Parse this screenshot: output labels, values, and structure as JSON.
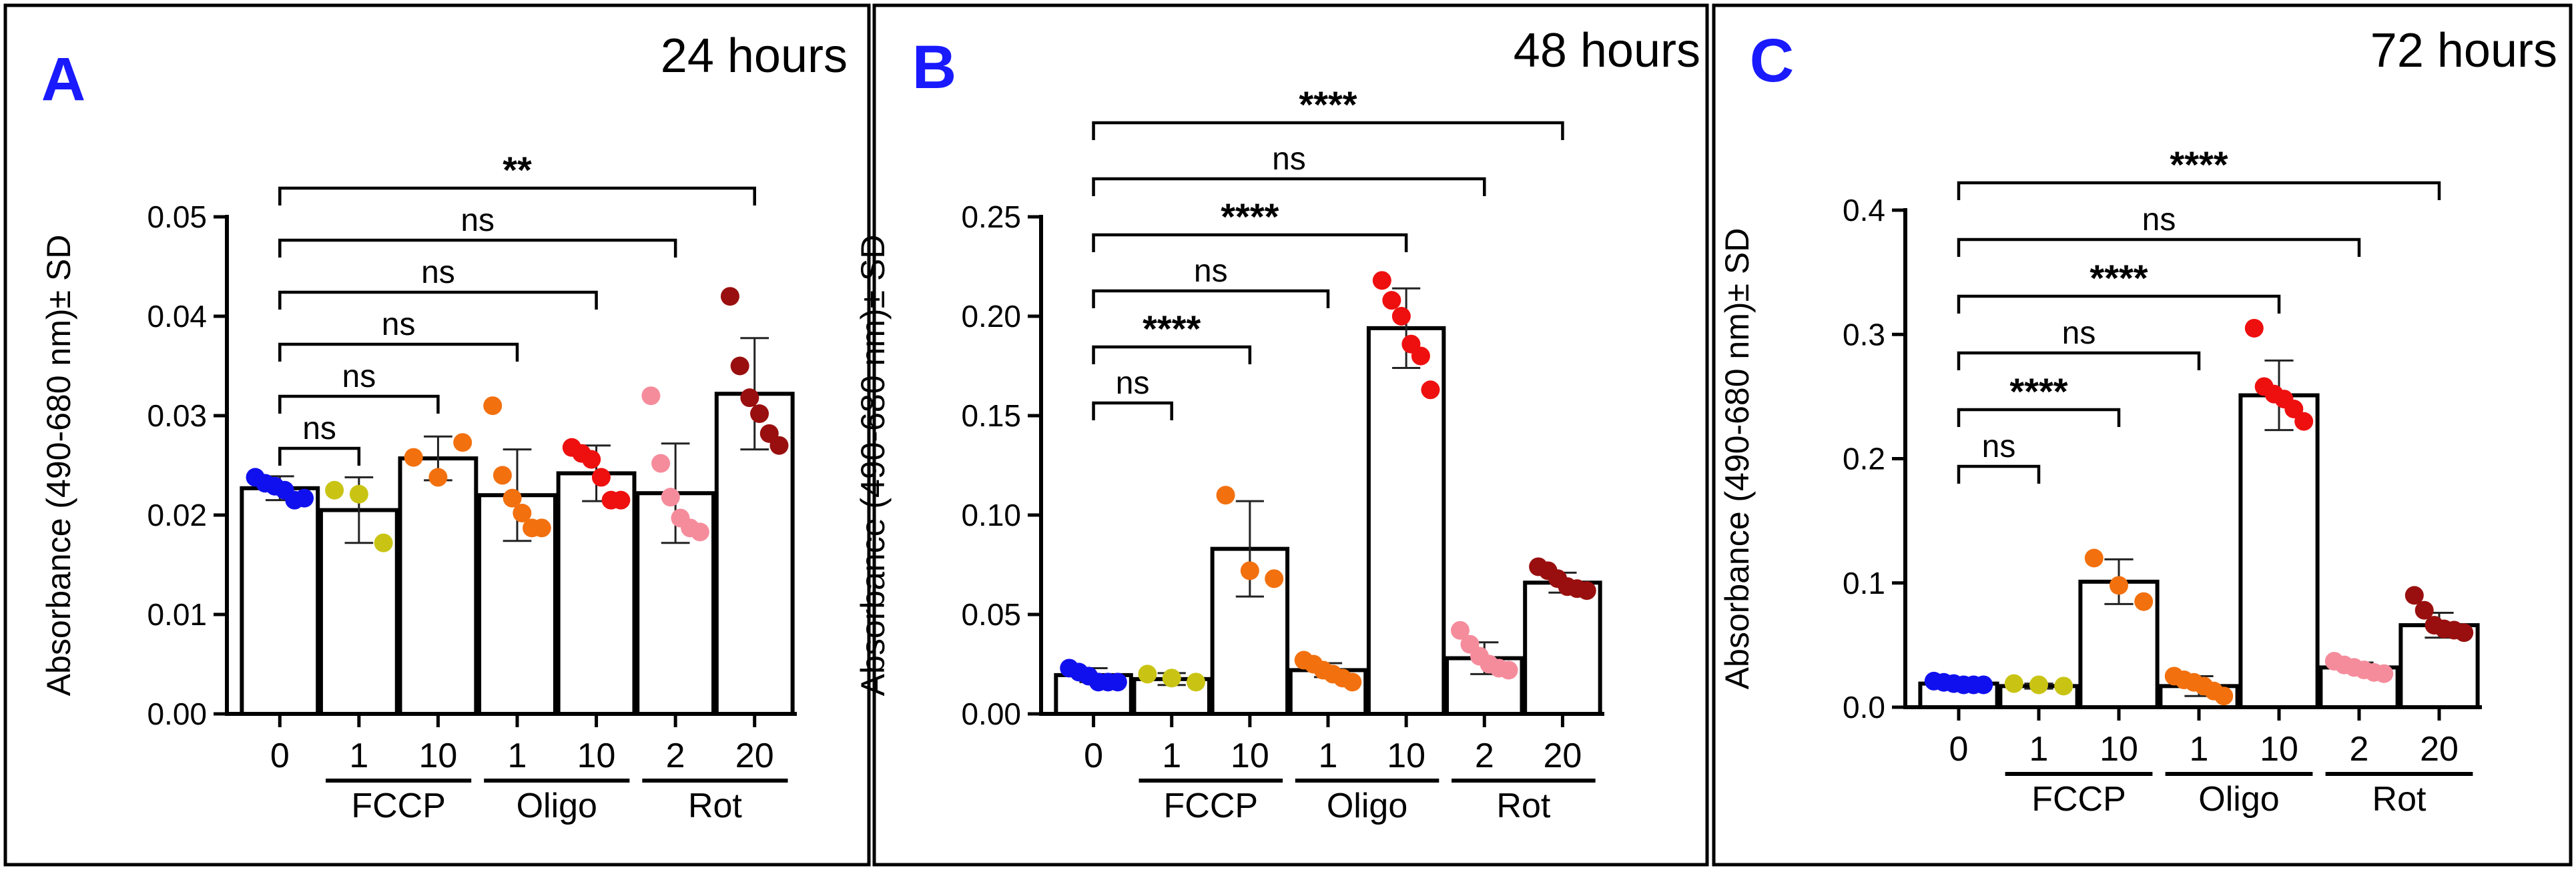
{
  "chart_data": [
    {
      "type": "bar",
      "panel": "A",
      "title": "24 hours",
      "ylabel": "Absorbance (490-680 nm)± SD",
      "ylim": [
        0,
        0.05
      ],
      "yticks": [
        "0.00",
        "0.01",
        "0.02",
        "0.03",
        "0.04",
        "0.05"
      ],
      "categories": [
        "0",
        "1",
        "10",
        "1",
        "10",
        "2",
        "20"
      ],
      "groups": [
        {
          "label": "FCCP",
          "from": 1,
          "to": 2
        },
        {
          "label": "Oligo",
          "from": 3,
          "to": 4
        },
        {
          "label": "Rot",
          "from": 5,
          "to": 6
        }
      ],
      "values": [
        0.0227,
        0.0205,
        0.0257,
        0.022,
        0.0242,
        0.0222,
        0.0322
      ],
      "sd": [
        0.0012,
        0.0033,
        0.0022,
        0.0046,
        0.0028,
        0.005,
        0.0056
      ],
      "points": [
        [
          0.0238,
          0.0232,
          0.0229,
          0.0225,
          0.0215,
          0.0217
        ],
        [
          0.0225,
          0.0221,
          0.0172
        ],
        [
          0.0258,
          0.0238,
          0.0273
        ],
        [
          0.031,
          0.024,
          0.0217,
          0.0202,
          0.0187,
          0.0187
        ],
        [
          0.0268,
          0.0262,
          0.0256,
          0.0238,
          0.0215,
          0.0215
        ],
        [
          0.032,
          0.0252,
          0.0218,
          0.0197,
          0.0187,
          0.0183
        ],
        [
          0.042,
          0.035,
          0.0318,
          0.0302,
          0.0282,
          0.027
        ]
      ],
      "colors": [
        "#1010ee",
        "#c9c414",
        "#f2700e",
        "#f2700e",
        "#ee0f0f",
        "#f58c9c",
        "#990f0f"
      ],
      "comparisons": [
        {
          "from": 0,
          "to": 1,
          "label": "ns"
        },
        {
          "from": 0,
          "to": 2,
          "label": "ns"
        },
        {
          "from": 0,
          "to": 3,
          "label": "ns"
        },
        {
          "from": 0,
          "to": 4,
          "label": "ns"
        },
        {
          "from": 0,
          "to": 5,
          "label": "ns"
        },
        {
          "from": 0,
          "to": 6,
          "label": "**"
        }
      ]
    },
    {
      "type": "bar",
      "panel": "B",
      "title": "48 hours",
      "ylabel": "Absorbance (490-680 nm)± SD",
      "ylim": [
        0,
        0.25
      ],
      "yticks": [
        "0.00",
        "0.05",
        "0.10",
        "0.15",
        "0.20",
        "0.25"
      ],
      "categories": [
        "0",
        "1",
        "10",
        "1",
        "10",
        "2",
        "20"
      ],
      "groups": [
        {
          "label": "FCCP",
          "from": 1,
          "to": 2
        },
        {
          "label": "Oligo",
          "from": 3,
          "to": 4
        },
        {
          "label": "Rot",
          "from": 5,
          "to": 6
        }
      ],
      "values": [
        0.0195,
        0.0175,
        0.083,
        0.022,
        0.194,
        0.028,
        0.066
      ],
      "sd": [
        0.0035,
        0.003,
        0.024,
        0.0035,
        0.02,
        0.008,
        0.005
      ],
      "points": [
        [
          0.023,
          0.021,
          0.019,
          0.016,
          0.016,
          0.016
        ],
        [
          0.02,
          0.018,
          0.016
        ],
        [
          0.11,
          0.072,
          0.068
        ],
        [
          0.027,
          0.025,
          0.022,
          0.02,
          0.018,
          0.016
        ],
        [
          0.218,
          0.208,
          0.2,
          0.186,
          0.18,
          0.163
        ],
        [
          0.042,
          0.035,
          0.029,
          0.025,
          0.023,
          0.022
        ],
        [
          0.074,
          0.072,
          0.068,
          0.064,
          0.063,
          0.062
        ]
      ],
      "colors": [
        "#1010ee",
        "#c9c414",
        "#f2700e",
        "#f2700e",
        "#ee0f0f",
        "#f58c9c",
        "#990f0f"
      ],
      "comparisons": [
        {
          "from": 0,
          "to": 1,
          "label": "ns"
        },
        {
          "from": 0,
          "to": 2,
          "label": "****"
        },
        {
          "from": 0,
          "to": 3,
          "label": "ns"
        },
        {
          "from": 0,
          "to": 4,
          "label": "****"
        },
        {
          "from": 0,
          "to": 5,
          "label": "ns"
        },
        {
          "from": 0,
          "to": 6,
          "label": "****"
        }
      ]
    },
    {
      "type": "bar",
      "panel": "C",
      "title": "72 hours",
      "ylabel": "Absorbance (490-680 nm)± SD",
      "ylim": [
        0,
        0.4
      ],
      "yticks": [
        "0.0",
        "0.1",
        "0.2",
        "0.3",
        "0.4"
      ],
      "categories": [
        "0",
        "1",
        "10",
        "1",
        "10",
        "2",
        "20"
      ],
      "groups": [
        {
          "label": "FCCP",
          "from": 1,
          "to": 2
        },
        {
          "label": "Oligo",
          "from": 3,
          "to": 4
        },
        {
          "label": "Rot",
          "from": 5,
          "to": 6
        }
      ],
      "values": [
        0.019,
        0.017,
        0.101,
        0.017,
        0.251,
        0.032,
        0.066
      ],
      "sd": [
        0.002,
        0.002,
        0.018,
        0.008,
        0.028,
        0.004,
        0.01
      ],
      "points": [
        [
          0.021,
          0.02,
          0.019,
          0.018,
          0.018,
          0.018
        ],
        [
          0.019,
          0.018,
          0.017
        ],
        [
          0.12,
          0.098,
          0.085
        ],
        [
          0.025,
          0.022,
          0.02,
          0.017,
          0.013,
          0.009
        ],
        [
          0.305,
          0.258,
          0.252,
          0.248,
          0.24,
          0.23
        ],
        [
          0.037,
          0.034,
          0.032,
          0.03,
          0.028,
          0.027
        ],
        [
          0.09,
          0.078,
          0.066,
          0.063,
          0.062,
          0.06
        ]
      ],
      "colors": [
        "#1010ee",
        "#c9c414",
        "#f2700e",
        "#f2700e",
        "#ee0f0f",
        "#f58c9c",
        "#990f0f"
      ],
      "comparisons": [
        {
          "from": 0,
          "to": 1,
          "label": "ns"
        },
        {
          "from": 0,
          "to": 2,
          "label": "****"
        },
        {
          "from": 0,
          "to": 3,
          "label": "ns"
        },
        {
          "from": 0,
          "to": 4,
          "label": "****"
        },
        {
          "from": 0,
          "to": 5,
          "label": "ns"
        },
        {
          "from": 0,
          "to": 6,
          "label": "****"
        }
      ]
    }
  ]
}
